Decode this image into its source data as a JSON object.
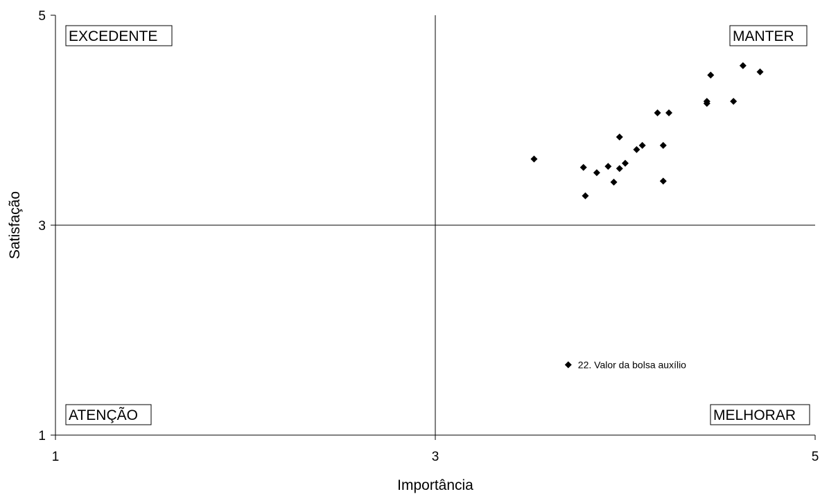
{
  "chart_data": {
    "type": "scatter",
    "title": "",
    "xlabel": "Importância",
    "ylabel": "Satisfação",
    "xlim": [
      1,
      5
    ],
    "ylim": [
      1,
      5
    ],
    "xticks": [
      "1",
      "3",
      "5"
    ],
    "yticks": [
      "1",
      "3",
      "5"
    ],
    "divider_x": 3,
    "divider_y": 3,
    "grid": false,
    "legend": "none",
    "marker": "diamond",
    "marker_color": "#000000",
    "quadrant_labels": {
      "top_left": "EXCEDENTE",
      "top_right": "MANTER",
      "bottom_left": "ATENÇÃO",
      "bottom_right": "MELHORAR"
    },
    "points": [
      {
        "x": 3.52,
        "y": 3.63
      },
      {
        "x": 3.78,
        "y": 3.55
      },
      {
        "x": 3.79,
        "y": 3.28
      },
      {
        "x": 3.85,
        "y": 3.5
      },
      {
        "x": 3.91,
        "y": 3.56
      },
      {
        "x": 3.94,
        "y": 3.41
      },
      {
        "x": 3.97,
        "y": 3.84
      },
      {
        "x": 3.97,
        "y": 3.54
      },
      {
        "x": 4.0,
        "y": 3.59
      },
      {
        "x": 4.06,
        "y": 3.72
      },
      {
        "x": 4.09,
        "y": 3.76
      },
      {
        "x": 4.17,
        "y": 4.07
      },
      {
        "x": 4.2,
        "y": 3.76
      },
      {
        "x": 4.2,
        "y": 3.42
      },
      {
        "x": 4.23,
        "y": 4.07
      },
      {
        "x": 4.43,
        "y": 4.16
      },
      {
        "x": 4.43,
        "y": 4.18
      },
      {
        "x": 4.45,
        "y": 4.43
      },
      {
        "x": 4.57,
        "y": 4.18
      },
      {
        "x": 4.62,
        "y": 4.52
      },
      {
        "x": 4.71,
        "y": 4.46
      },
      {
        "x": 3.7,
        "y": 1.67,
        "label": "22. Valor da bolsa auxílio"
      }
    ]
  }
}
